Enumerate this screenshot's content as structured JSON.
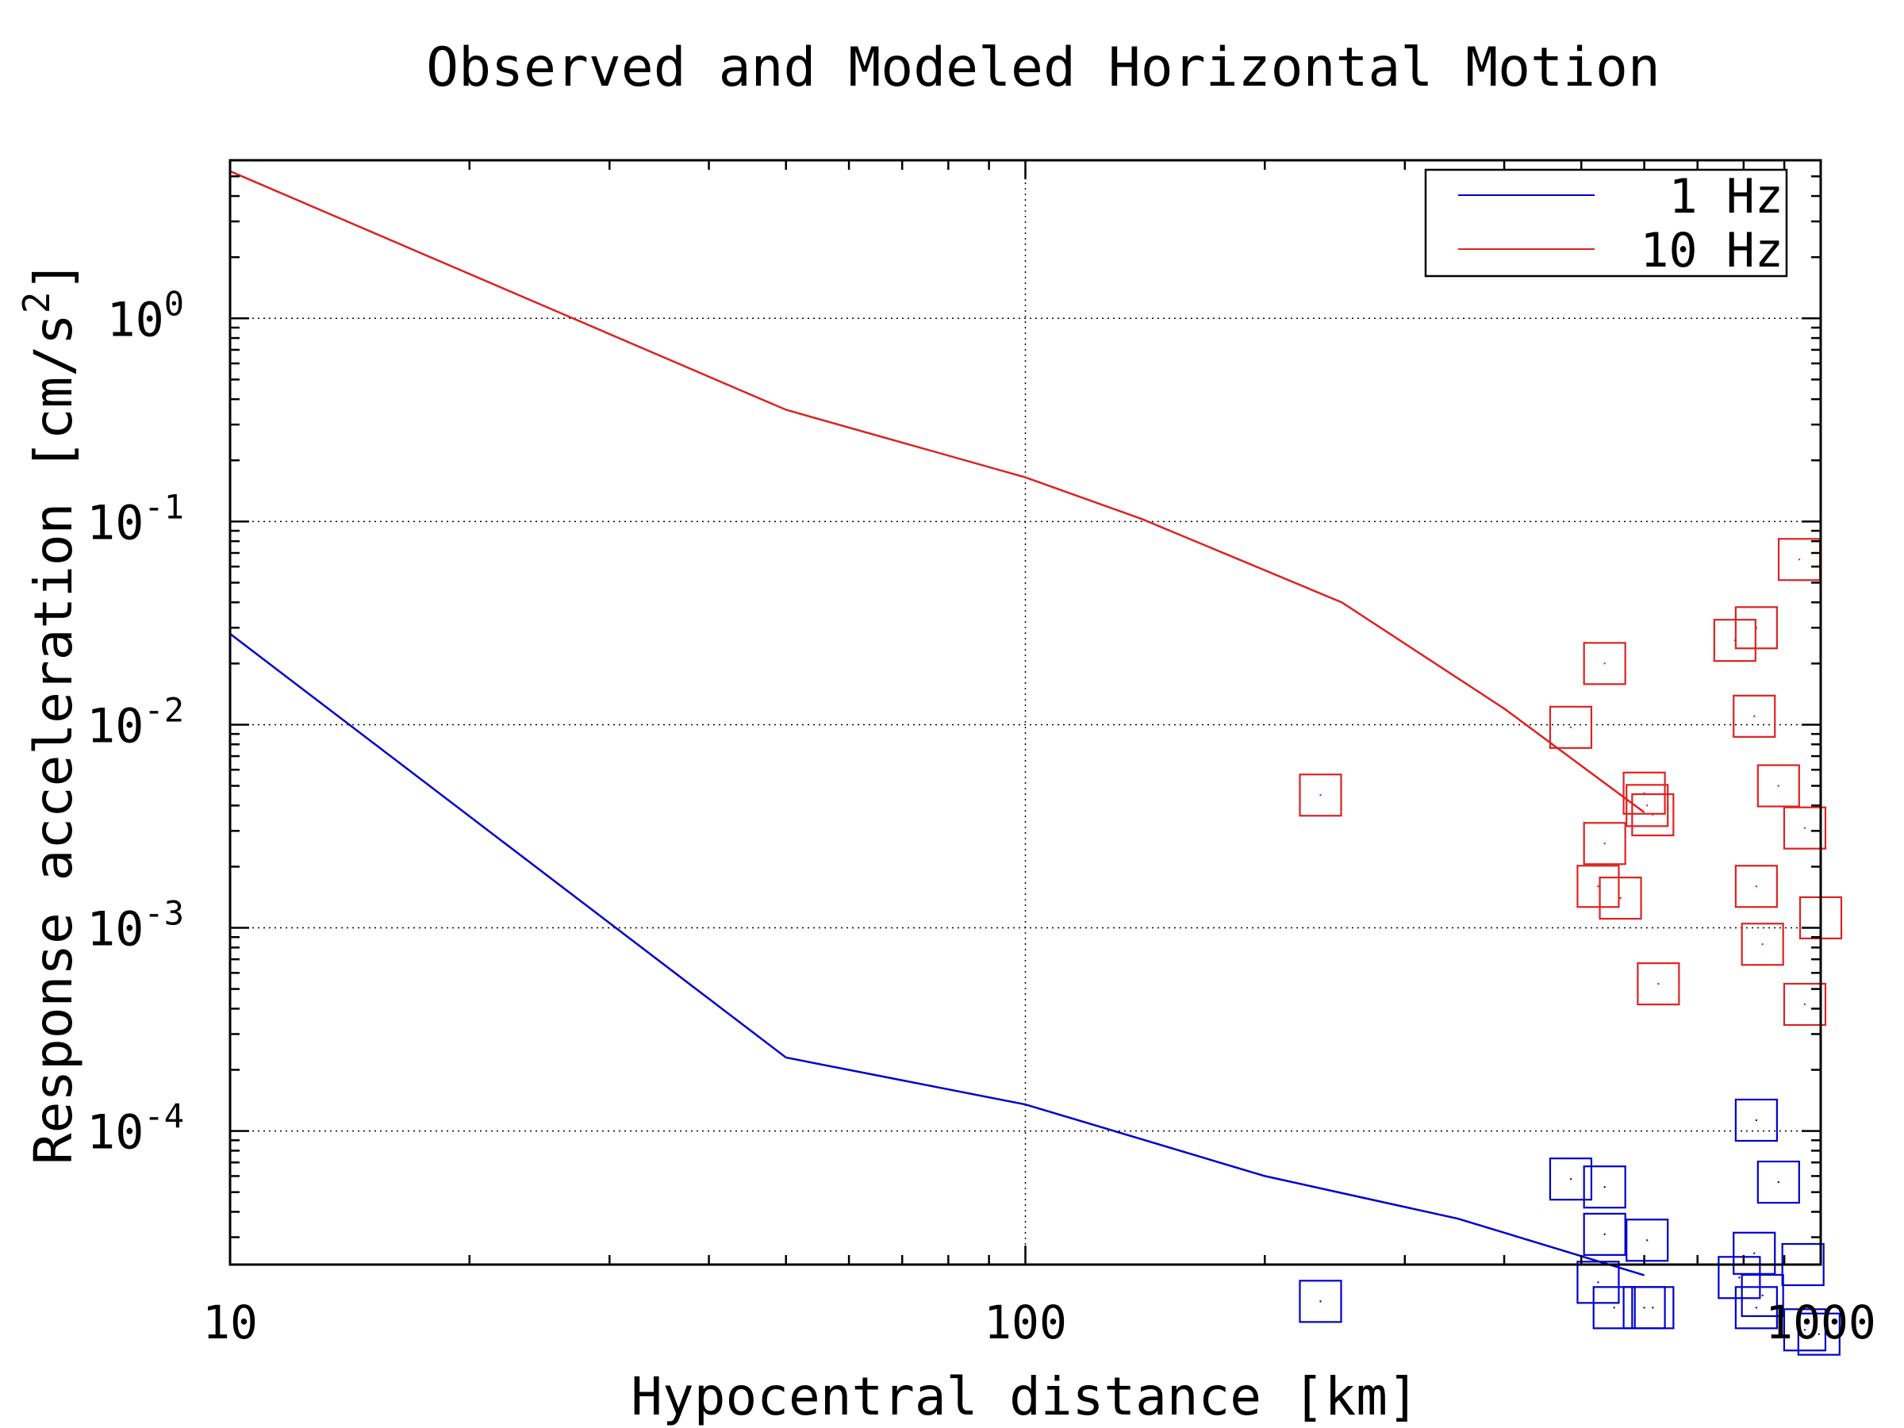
{
  "chart_data": {
    "type": "scatter",
    "title": "Observed and Modeled Horizontal Motion",
    "xlabel": "Hypocentral distance [km]",
    "ylabel_text": "Response acceleration [cm/s",
    "ylabel_sup": "2",
    "ylabel_close": "]",
    "xscale": "log",
    "yscale": "log",
    "xlim": [
      10,
      1000
    ],
    "ylim": [
      2.2e-05,
      6
    ],
    "grid": true,
    "legend_position": "top-right",
    "x_ticks": [
      {
        "value": 10,
        "label": "10"
      },
      {
        "value": 100,
        "label": "100"
      },
      {
        "value": 1000,
        "label": "1000"
      }
    ],
    "y_ticks": [
      {
        "value": 1,
        "base": "10",
        "exp": "0"
      },
      {
        "value": 0.1,
        "base": "10",
        "exp": "-1"
      },
      {
        "value": 0.01,
        "base": "10",
        "exp": "-2"
      },
      {
        "value": 0.001,
        "base": "10",
        "exp": "-3"
      },
      {
        "value": 0.0001,
        "base": "10",
        "exp": "-4"
      }
    ],
    "series": [
      {
        "name": "1 Hz",
        "color": "#0000cc",
        "line": {
          "x": [
            10,
            50,
            100,
            200,
            350,
            600
          ],
          "y": [
            0.028,
            0.00023,
            0.000135,
            6e-05,
            3.7e-05,
            1.95e-05
          ]
        },
        "observed": {
          "x": [
            235,
            485,
            535,
            535,
            525,
            550,
            600,
            615,
            605,
            790,
            830,
            825,
            830,
            845,
            885,
            950,
            955,
            975,
            995
          ],
          "y": [
            1.45e-05,
            5.8e-05,
            5.3e-05,
            3.1e-05,
            1.8e-05,
            1.35e-05,
            1.35e-05,
            1.35e-05,
            2.9e-05,
            1.9e-05,
            0.000113,
            2.5e-05,
            1.35e-05,
            1.55e-05,
            5.6e-05,
            2.2e-05,
            1.05e-05,
            2.5e-06,
            1e-05
          ]
        }
      },
      {
        "name": "10 Hz",
        "color": "#dd2222",
        "line": {
          "x": [
            10,
            50,
            100,
            140,
            250,
            400,
            600
          ],
          "y": [
            5.3,
            0.355,
            0.165,
            0.103,
            0.04,
            0.012,
            0.0037
          ]
        },
        "observed": {
          "x": [
            235,
            485,
            535,
            535,
            525,
            560,
            600,
            605,
            615,
            625,
            780,
            830,
            825,
            830,
            845,
            885,
            940,
            955,
            955,
            1000
          ],
          "y": [
            0.0045,
            0.0097,
            0.02,
            0.0026,
            0.0016,
            0.0014,
            0.0046,
            0.004,
            0.0036,
            0.00053,
            0.026,
            0.03,
            0.011,
            0.0016,
            0.00083,
            0.005,
            0.065,
            0.0031,
            0.00042,
            0.00112
          ]
        }
      }
    ]
  }
}
